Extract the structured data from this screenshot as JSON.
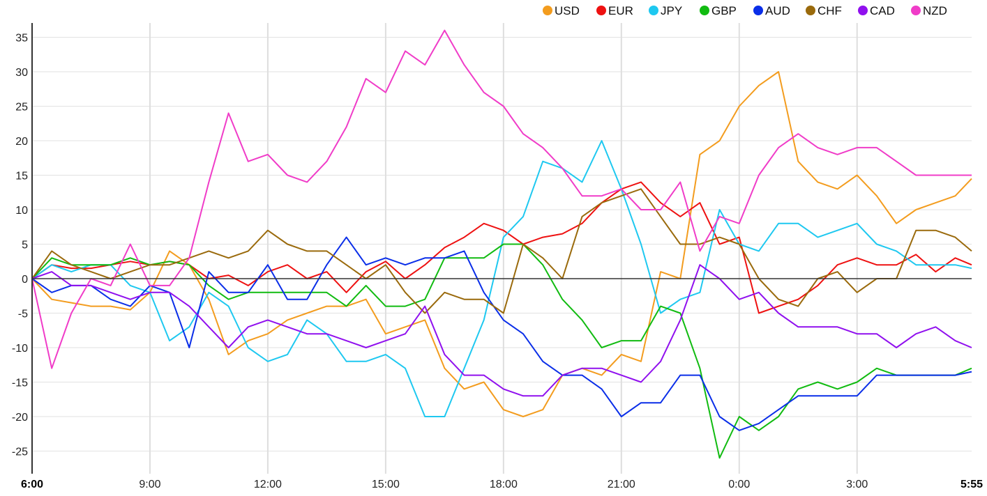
{
  "chart_data": {
    "type": "line",
    "title": "",
    "xlabel": "",
    "ylabel": "",
    "ylim": [
      -28,
      37
    ],
    "yticks": [
      35,
      30,
      25,
      20,
      15,
      10,
      5,
      0,
      -5,
      -10,
      -15,
      -20,
      -25
    ],
    "x_unit": "minutes since 6:00",
    "x_range": [
      0,
      1435
    ],
    "xticks": [
      {
        "x": 0,
        "label": "6:00",
        "bold": true
      },
      {
        "x": 180,
        "label": "9:00"
      },
      {
        "x": 360,
        "label": "12:00"
      },
      {
        "x": 540,
        "label": "15:00"
      },
      {
        "x": 720,
        "label": "18:00"
      },
      {
        "x": 900,
        "label": "21:00"
      },
      {
        "x": 1080,
        "label": "0:00"
      },
      {
        "x": 1260,
        "label": "3:00"
      },
      {
        "x": 1435,
        "label": "5:55",
        "bold": true
      }
    ],
    "grid": true,
    "legend_position": "top-right",
    "x": [
      0,
      30,
      60,
      90,
      120,
      150,
      180,
      210,
      240,
      270,
      300,
      330,
      360,
      390,
      420,
      450,
      480,
      510,
      540,
      570,
      600,
      630,
      660,
      690,
      720,
      750,
      780,
      810,
      840,
      870,
      900,
      930,
      960,
      990,
      1020,
      1050,
      1080,
      1110,
      1140,
      1170,
      1200,
      1230,
      1260,
      1290,
      1320,
      1350,
      1380,
      1410,
      1435
    ],
    "series": [
      {
        "name": "USD",
        "color": "#f39c1e",
        "values": [
          0,
          -3,
          -3.5,
          -4,
          -4,
          -4.5,
          -2,
          4,
          2,
          -3,
          -11,
          -9,
          -8,
          -6,
          -5,
          -4,
          -4,
          -3,
          -8,
          -7,
          -6,
          -13,
          -16,
          -15,
          -19,
          -20,
          -19,
          -14,
          -13,
          -14,
          -11,
          -12,
          1,
          0,
          18,
          20,
          25,
          28,
          30,
          17,
          14,
          13,
          15,
          12,
          8,
          10,
          11,
          12,
          14.5
        ]
      },
      {
        "name": "EUR",
        "color": "#ee1111",
        "values": [
          0,
          2,
          1.5,
          1.5,
          2,
          2.5,
          2,
          2.5,
          2,
          0,
          0.5,
          -1,
          1,
          2,
          0,
          1,
          -2,
          1,
          2.5,
          0,
          2,
          4.5,
          6,
          8,
          7,
          5,
          6,
          6.5,
          8,
          11,
          13,
          14,
          11,
          9,
          11,
          5,
          6,
          -5,
          -4,
          -3,
          -1,
          2,
          3,
          2,
          2,
          3.5,
          1,
          3,
          2
        ]
      },
      {
        "name": "JPY",
        "color": "#1ec8f0",
        "values": [
          0,
          2,
          1,
          2,
          2,
          -1,
          -2,
          -9,
          -7,
          -2,
          -4,
          -10,
          -12,
          -11,
          -6,
          -8,
          -12,
          -12,
          -11,
          -13,
          -20,
          -20,
          -13,
          -6,
          6,
          9,
          17,
          16,
          14,
          20,
          13,
          5,
          -5,
          -3,
          -2,
          10,
          5,
          4,
          8,
          8,
          6,
          7,
          8,
          5,
          4,
          2,
          2,
          2,
          1.5
        ]
      },
      {
        "name": "GBP",
        "color": "#11bb11",
        "values": [
          0,
          3,
          2,
          2,
          2,
          3,
          2,
          2.5,
          2,
          -1,
          -3,
          -2,
          -2,
          -2,
          -2,
          -2,
          -4,
          -1,
          -4,
          -4,
          -3,
          3,
          3,
          3,
          5,
          5,
          2,
          -3,
          -6,
          -10,
          -9,
          -9,
          -4,
          -5,
          -13,
          -26,
          -20,
          -22,
          -20,
          -16,
          -15,
          -16,
          -15,
          -13,
          -14,
          -14,
          -14,
          -14,
          -13
        ]
      },
      {
        "name": "AUD",
        "color": "#0a2ee8",
        "values": [
          0,
          -2,
          -1,
          -1,
          -3,
          -4,
          -1,
          -2,
          -10,
          1,
          -2,
          -2,
          2,
          -3,
          -3,
          2,
          6,
          2,
          3,
          2,
          3,
          3,
          4,
          -2,
          -6,
          -8,
          -12,
          -14,
          -14,
          -16,
          -20,
          -18,
          -18,
          -14,
          -14,
          -20,
          -22,
          -21,
          -19,
          -17,
          -17,
          -17,
          -17,
          -14,
          -14,
          -14,
          -14,
          -14,
          -13.5
        ]
      },
      {
        "name": "CHF",
        "color": "#9a6a0c",
        "values": [
          0,
          4,
          2,
          1,
          0,
          1,
          2,
          2,
          3,
          4,
          3,
          4,
          7,
          5,
          4,
          4,
          2,
          0,
          2,
          -2,
          -5,
          -2,
          -3,
          -3,
          -5,
          5,
          3,
          0,
          9,
          11,
          12,
          13,
          9,
          5,
          5,
          6,
          5,
          0,
          -3,
          -4,
          0,
          1,
          -2,
          0,
          0,
          7,
          7,
          6,
          4
        ]
      },
      {
        "name": "CAD",
        "color": "#9010ee",
        "values": [
          0,
          1,
          -1,
          -1,
          -2,
          -3,
          -2,
          -2,
          -4,
          -7,
          -10,
          -7,
          -6,
          -7,
          -8,
          -8,
          -9,
          -10,
          -9,
          -8,
          -4,
          -11,
          -14,
          -14,
          -16,
          -17,
          -17,
          -14,
          -13,
          -13,
          -14,
          -15,
          -12,
          -6,
          2,
          0,
          -3,
          -2,
          -5,
          -7,
          -7,
          -7,
          -8,
          -8,
          -10,
          -8,
          -7,
          -9,
          -10
        ]
      },
      {
        "name": "NZD",
        "color": "#f03cc8",
        "values": [
          0,
          -13,
          -5,
          0,
          -1,
          5,
          -1,
          -1,
          3,
          14,
          24,
          17,
          18,
          15,
          14,
          17,
          22,
          29,
          27,
          33,
          31,
          36,
          31,
          27,
          25,
          21,
          19,
          16,
          12,
          12,
          13,
          10,
          10,
          14,
          4,
          9,
          8,
          15,
          19,
          21,
          19,
          18,
          19,
          19,
          17,
          15,
          15,
          15,
          15
        ]
      }
    ]
  }
}
